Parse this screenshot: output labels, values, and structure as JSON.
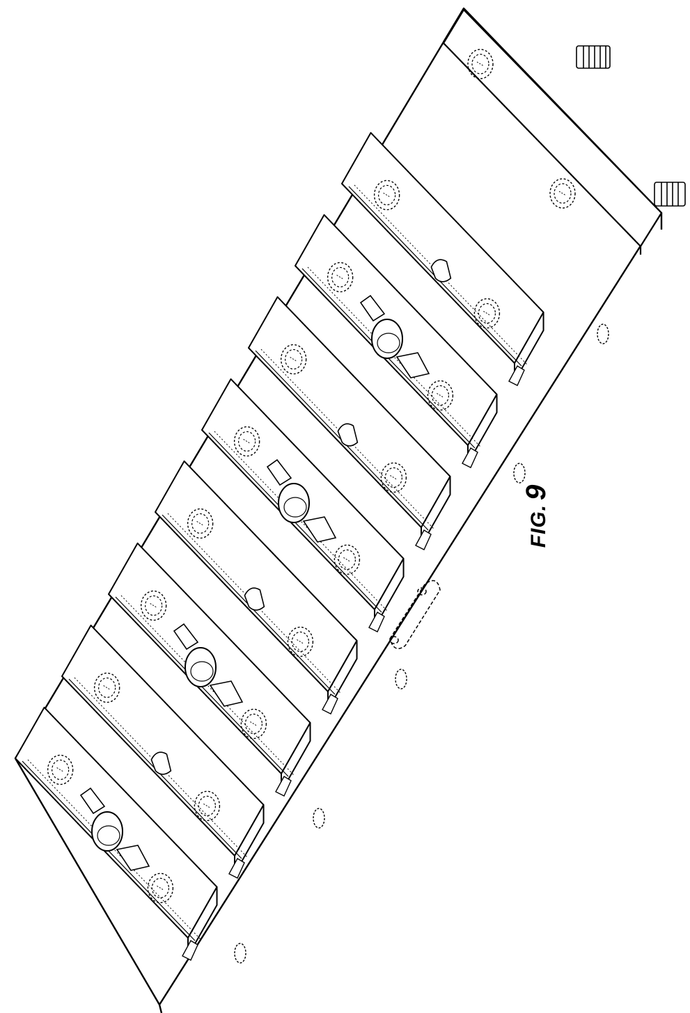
{
  "figure": {
    "prefix": "FIG.",
    "number": "9"
  },
  "drawing": {
    "line_color": "#000000",
    "background": "#ffffff",
    "block_count": 8
  }
}
